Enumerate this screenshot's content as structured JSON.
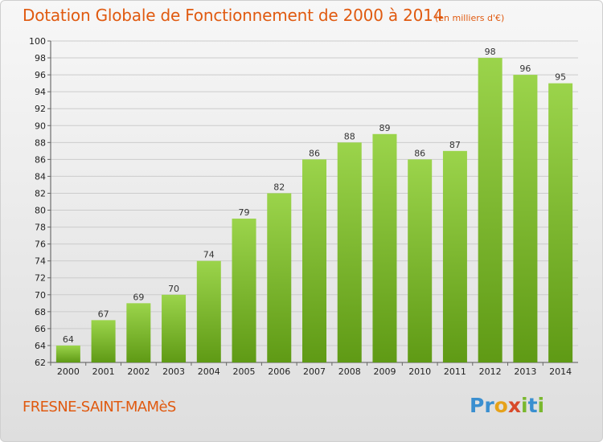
{
  "colors": {
    "accent": "#e05a10",
    "bar_light": "#9bd44b",
    "bar_dark": "#5f9a15",
    "grid": "#cccccc"
  },
  "header": {
    "title": "Dotation Globale de Fonctionnement de 2000 à 2014",
    "subtitle": "(en milliers d'€)"
  },
  "footer": {
    "city": "FRESNE-SAINT-MAMèS",
    "logo_letters": [
      {
        "ch": "P",
        "color": "#3a8fd0"
      },
      {
        "ch": "r",
        "color": "#3a8fd0"
      },
      {
        "ch": "o",
        "color": "#e6a21a"
      },
      {
        "ch": "x",
        "color": "#d84a2a"
      },
      {
        "ch": "i",
        "color": "#7ab82e"
      },
      {
        "ch": "t",
        "color": "#3a8fd0"
      },
      {
        "ch": "i",
        "color": "#7ab82e"
      }
    ]
  },
  "chart_data": {
    "type": "bar",
    "title": "Dotation Globale de Fonctionnement de 2000 à 2014",
    "subtitle": "(en milliers d'€)",
    "categories": [
      "2000",
      "2001",
      "2002",
      "2003",
      "2004",
      "2005",
      "2006",
      "2007",
      "2008",
      "2009",
      "2010",
      "2011",
      "2012",
      "2013",
      "2014"
    ],
    "values": [
      64,
      67,
      69,
      70,
      74,
      79,
      82,
      86,
      88,
      89,
      86,
      87,
      98,
      96,
      95
    ],
    "ylim": [
      62,
      100
    ],
    "yticks": [
      62,
      64,
      66,
      68,
      70,
      72,
      74,
      76,
      78,
      80,
      82,
      84,
      86,
      88,
      90,
      92,
      94,
      96,
      98,
      100
    ],
    "grid": true,
    "data_labels": true
  }
}
